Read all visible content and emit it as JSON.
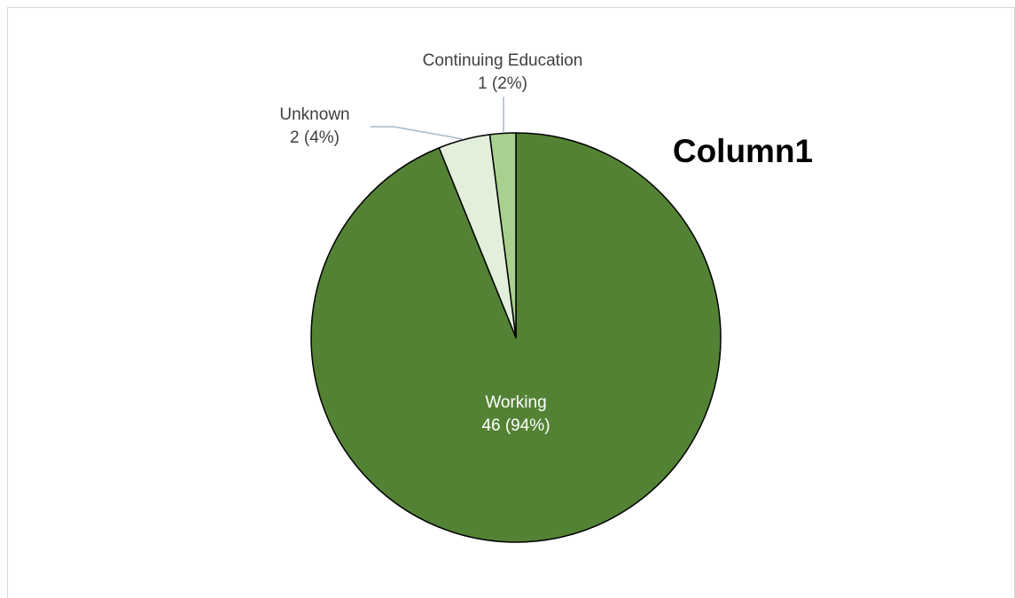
{
  "chart_data": {
    "type": "pie",
    "title": "Column1",
    "slices": [
      {
        "label": "Working",
        "value": 46,
        "percent_label": "46 (94%)",
        "color": "#548235"
      },
      {
        "label": "Unknown",
        "value": 2,
        "percent_label": "2 (4%)",
        "color": "#e2efda"
      },
      {
        "label": "Continuing Education",
        "value": 1,
        "percent_label": "1 (2%)",
        "color": "#a9d08e"
      }
    ],
    "start_angle_deg": 0,
    "direction": "clockwise",
    "legend": "none",
    "label_colors": {
      "inside": "#ffffff",
      "outside": "#404040"
    },
    "leader_line_color": "#a6b8c8"
  }
}
